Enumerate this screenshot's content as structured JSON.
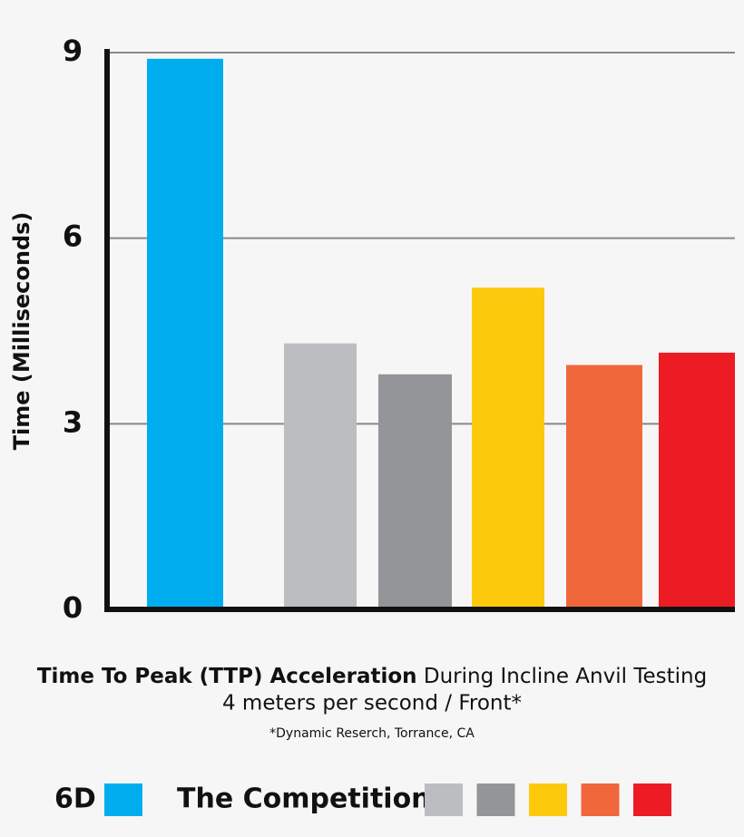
{
  "chart_data": {
    "type": "bar",
    "title_bold": "Time To Peak (TTP) Acceleration",
    "title_rest": " During Incline Anvil Testing",
    "subtitle": "4 meters per second / Front*",
    "note": "*Dynamic Reserch, Torrance, CA",
    "y_label": "Time (Milliseconds)",
    "categories": [
      null,
      null,
      null,
      null,
      null,
      null
    ],
    "values": [
      8.9,
      4.3,
      3.8,
      5.2,
      3.95,
      4.15
    ],
    "colors": [
      "#00aeef",
      "#bcbdc0",
      "#939598",
      "#fdc90c",
      "#f0673b",
      "#ed1c24"
    ],
    "ylim": [
      0,
      9
    ],
    "yticks": [
      0,
      3,
      6,
      9
    ],
    "grid": true,
    "legend": [
      {
        "label": "6D",
        "colors": [
          "#00aeef"
        ]
      },
      {
        "label": "The Competition",
        "colors": [
          "#bcbdc0",
          "#939598",
          "#fdc90c",
          "#f0673b",
          "#ed1c24"
        ]
      }
    ]
  }
}
